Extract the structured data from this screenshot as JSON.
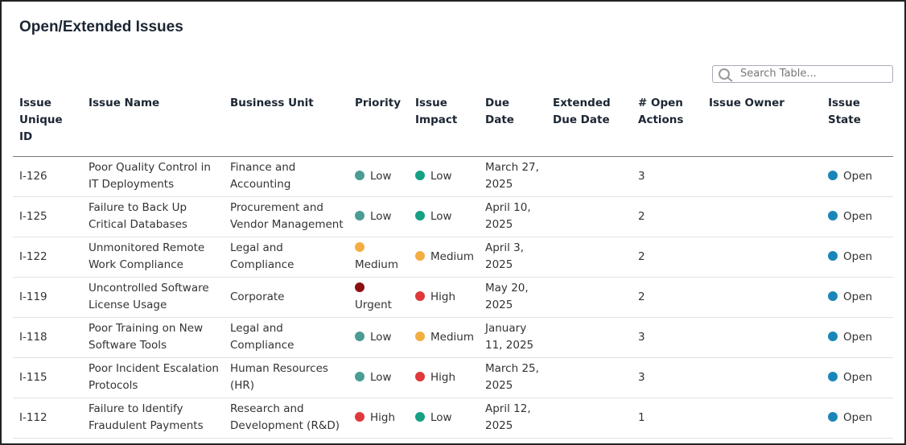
{
  "header": {
    "title": "Open/Extended Issues",
    "search_placeholder": "Search Table..."
  },
  "table": {
    "columns": [
      "Issue Unique ID",
      "Issue Name",
      "Business Unit",
      "Priority",
      "Issue Impact",
      "Due Date",
      "Extended Due Date",
      "# Open Actions",
      "Issue Owner",
      "Issue State"
    ],
    "rows": [
      {
        "id": "I-126",
        "name": "Poor Quality Control in IT Deployments",
        "business_unit": "Finance and Accounting",
        "priority": "Low",
        "impact": "Low",
        "due": "March 27, 2025",
        "open_actions": 3,
        "state": "Open"
      },
      {
        "id": "I-125",
        "name": "Failure to Back Up Critical Databases",
        "business_unit": "Procurement and Vendor Management",
        "priority": "Low",
        "impact": "Low",
        "due": "April 10, 2025",
        "open_actions": 2,
        "state": "Open"
      },
      {
        "id": "I-122",
        "name": "Unmonitored Remote Work Compliance",
        "business_unit": "Legal and Compliance",
        "priority": "Medium",
        "impact": "Medium",
        "due": "April 3, 2025",
        "open_actions": 2,
        "state": "Open"
      },
      {
        "id": "I-119",
        "name": "Uncontrolled Software License Usage",
        "business_unit": "Corporate",
        "priority": "Urgent",
        "impact": "High",
        "due": "May 20, 2025",
        "open_actions": 2,
        "state": "Open"
      },
      {
        "id": "I-118",
        "name": "Poor Training on New Software Tools",
        "business_unit": "Legal and Compliance",
        "priority": "Low",
        "impact": "Medium",
        "due": "January 11, 2025",
        "open_actions": 3,
        "state": "Open"
      },
      {
        "id": "I-115",
        "name": "Poor Incident Escalation Protocols",
        "business_unit": "Human Resources (HR)",
        "priority": "Low",
        "impact": "High",
        "due": "March 25, 2025",
        "open_actions": 3,
        "state": "Open"
      },
      {
        "id": "I-112",
        "name": "Failure to Identify Fraudulent Payments",
        "business_unit": "Research and Development (R&D)",
        "priority": "High",
        "impact": "Low",
        "due": "April 12, 2025",
        "open_actions": 1,
        "state": "Open"
      }
    ],
    "priority_colors": {
      "Low": "#4a9c94",
      "Medium": "#f3ae42",
      "Urgent": "#8c1010",
      "High": "#e0383b"
    },
    "impact_colors": {
      "Low": "#16a085",
      "Medium": "#f3ae42",
      "High": "#e0383b"
    },
    "state_colors": {
      "Open": "#1a86b8"
    }
  }
}
